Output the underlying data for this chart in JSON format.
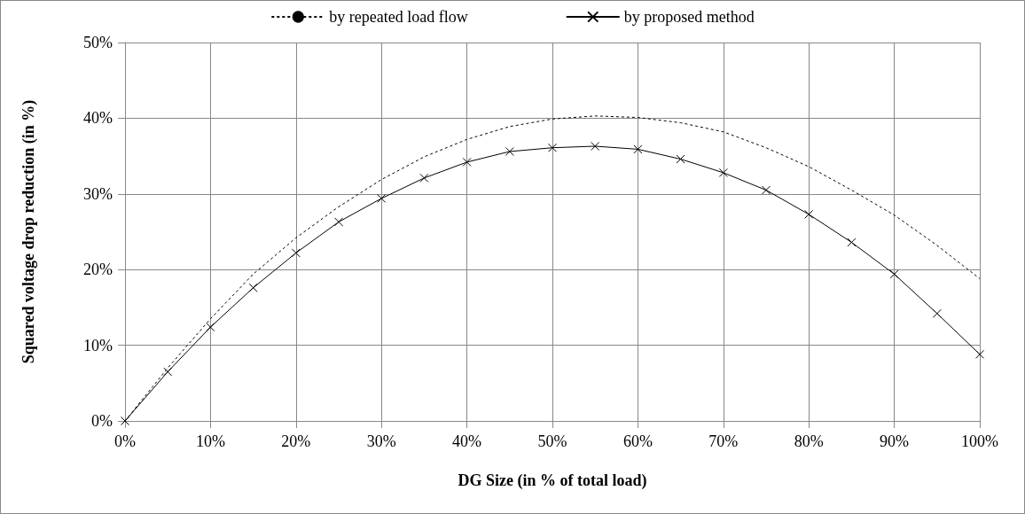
{
  "chart_data": {
    "type": "line",
    "xlabel": "DG Size (in % of total load)",
    "ylabel": "Squared voltage drop reduction (in %)",
    "x": [
      0,
      5,
      10,
      15,
      20,
      25,
      30,
      35,
      40,
      45,
      50,
      55,
      60,
      65,
      70,
      75,
      80,
      85,
      90,
      95,
      100
    ],
    "series": [
      {
        "name": "by repeated load flow",
        "color": "#000000",
        "line_style": "dashed",
        "marker": "none",
        "values": [
          0,
          7.0,
          13.5,
          19.4,
          24.2,
          28.3,
          31.9,
          34.9,
          37.2,
          38.9,
          39.9,
          40.3,
          40.1,
          39.4,
          38.2,
          36.1,
          33.6,
          30.5,
          27.2,
          23.2,
          18.8
        ]
      },
      {
        "name": "by proposed method",
        "color": "#000000",
        "line_style": "solid",
        "marker": "cross",
        "values": [
          0,
          6.5,
          12.4,
          17.6,
          22.2,
          26.3,
          29.4,
          32.1,
          34.2,
          35.6,
          36.1,
          36.3,
          35.9,
          34.6,
          32.8,
          30.5,
          27.3,
          23.6,
          19.4,
          14.2,
          8.8
        ]
      }
    ],
    "xlim": [
      0,
      100
    ],
    "xticks": [
      {
        "value": 0,
        "label": "0%"
      },
      {
        "value": 10,
        "label": "10%"
      },
      {
        "value": 20,
        "label": "20%"
      },
      {
        "value": 30,
        "label": "30%"
      },
      {
        "value": 40,
        "label": "40%"
      },
      {
        "value": 50,
        "label": "50%"
      },
      {
        "value": 60,
        "label": "60%"
      },
      {
        "value": 70,
        "label": "70%"
      },
      {
        "value": 80,
        "label": "80%"
      },
      {
        "value": 90,
        "label": "90%"
      },
      {
        "value": 100,
        "label": "100%"
      }
    ],
    "ylim": [
      0,
      50
    ],
    "yticks": [
      {
        "value": 0,
        "label": "0%"
      },
      {
        "value": 10,
        "label": "10%"
      },
      {
        "value": 20,
        "label": "20%"
      },
      {
        "value": 30,
        "label": "30%"
      },
      {
        "value": 40,
        "label": "40%"
      },
      {
        "value": 50,
        "label": "50%"
      }
    ],
    "grid": true,
    "legend": "top"
  }
}
